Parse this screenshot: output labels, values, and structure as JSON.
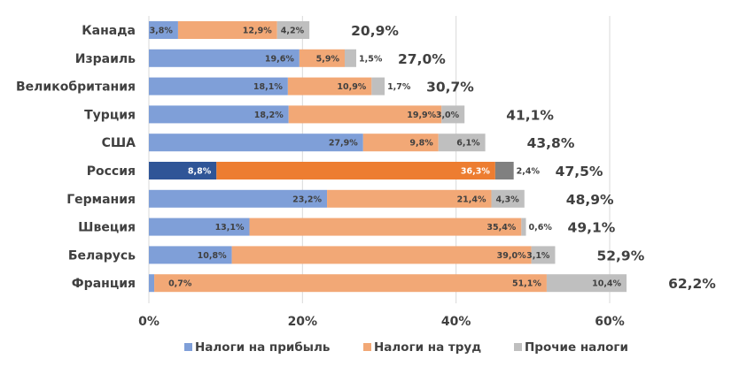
{
  "chart_data": {
    "type": "bar",
    "orientation": "horizontal",
    "stacked": true,
    "title": "",
    "xlabel": "",
    "ylabel": "",
    "xlim": [
      0,
      60
    ],
    "x_ticks": [
      0,
      20,
      40,
      60
    ],
    "x_tick_labels": [
      "0%",
      "20%",
      "40%",
      "60%"
    ],
    "grid": true,
    "legend_position": "bottom",
    "categories": [
      "Канада",
      "Израиль",
      "Великобритания",
      "Турция",
      "США",
      "Россия",
      "Германия",
      "Швеция",
      "Беларусь",
      "Франция"
    ],
    "series": [
      {
        "name": "Налоги на прибыль",
        "color": "#7F9FD8",
        "values": [
          3.8,
          19.6,
          18.1,
          18.2,
          27.9,
          8.8,
          23.2,
          13.1,
          10.8,
          0.7
        ],
        "labels": [
          "3,8%",
          "19,6%",
          "18,1%",
          "18,2%",
          "27,9%",
          "8,8%",
          "23,2%",
          "13,1%",
          "10,8%",
          "0,7%"
        ]
      },
      {
        "name": "Налоги на труд",
        "color": "#F2A876",
        "values": [
          12.9,
          5.9,
          10.9,
          19.9,
          9.8,
          36.3,
          21.4,
          35.4,
          39.0,
          51.1
        ],
        "labels": [
          "12,9%",
          "5,9%",
          "10,9%",
          "19,9%",
          "9,8%",
          "36,3%",
          "21,4%",
          "35,4%",
          "39,0%",
          "51,1%"
        ]
      },
      {
        "name": "Прочие налоги",
        "color": "#BFBFBF",
        "values": [
          4.2,
          1.5,
          1.7,
          3.0,
          6.1,
          2.4,
          4.3,
          0.6,
          3.1,
          10.4
        ],
        "labels": [
          "4,2%",
          "1,5%",
          "1,7%",
          "3,0%",
          "6,1%",
          "2,4%",
          "4,3%",
          "0,6%",
          "3,1%",
          "10,4%"
        ]
      }
    ],
    "totals": [
      20.9,
      27.0,
      30.7,
      41.1,
      43.8,
      47.5,
      48.9,
      49.1,
      52.9,
      62.2
    ],
    "total_labels": [
      "20,9%",
      "27,0%",
      "30,7%",
      "41,1%",
      "43,8%",
      "47,5%",
      "48,9%",
      "49,1%",
      "52,9%",
      "62,2%"
    ],
    "highlight_category": "Россия",
    "highlight_colors": [
      "#2F5597",
      "#ED7D31",
      "#808080"
    ]
  }
}
